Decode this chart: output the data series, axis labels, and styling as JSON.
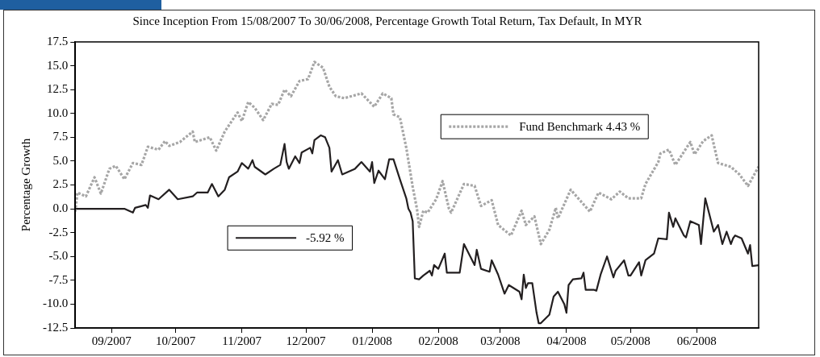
{
  "chart_data": {
    "type": "line",
    "title": "Since Inception From 15/08/2007 To 30/06/2008, Percentage Growth Total Return, Tax Default, In MYR",
    "ylabel": "Percentage Growth",
    "xlim": [
      "2007-08-15",
      "2008-06-30"
    ],
    "xticks": [
      {
        "value": "2007-09-01",
        "label": "09/2007"
      },
      {
        "value": "2007-10-01",
        "label": "10/2007"
      },
      {
        "value": "2007-11-01",
        "label": "11/2007"
      },
      {
        "value": "2007-12-01",
        "label": "12/2007"
      },
      {
        "value": "2008-01-01",
        "label": "01/2008"
      },
      {
        "value": "2008-02-01",
        "label": "02/2008"
      },
      {
        "value": "2008-03-01",
        "label": "03/2008"
      },
      {
        "value": "2008-04-01",
        "label": "04/2008"
      },
      {
        "value": "2008-05-01",
        "label": "05/2008"
      },
      {
        "value": "2008-06-01",
        "label": "06/2008"
      }
    ],
    "ylim": [
      -12.5,
      17.5
    ],
    "yticks": [
      {
        "value": -12.5,
        "label": "-12.5"
      },
      {
        "value": -10,
        "label": "-10.0"
      },
      {
        "value": -7.5,
        "label": "-7.5"
      },
      {
        "value": -5,
        "label": "-5.0"
      },
      {
        "value": -2.5,
        "label": "-2.5"
      },
      {
        "value": 0,
        "label": "0.0"
      },
      {
        "value": 2.5,
        "label": "2.5"
      },
      {
        "value": 5,
        "label": "5.0"
      },
      {
        "value": 7.5,
        "label": "7.5"
      },
      {
        "value": 10,
        "label": "10.0"
      },
      {
        "value": 12.5,
        "label": "12.5"
      },
      {
        "value": 15,
        "label": "15.0"
      },
      17.5
    ],
    "grid": false,
    "legend": "center",
    "marker": "none",
    "series": [
      {
        "name": "Fund Benchmark 4.43 %",
        "color": "#a6a6a6",
        "line_style": "dotted",
        "x": [
          "2007-08-15",
          "2007-08-16",
          "2007-08-20",
          "2007-08-24",
          "2007-08-27",
          "2007-08-31",
          "2007-09-03",
          "2007-09-07",
          "2007-09-11",
          "2007-09-15",
          "2007-09-18",
          "2007-09-23",
          "2007-09-26",
          "2007-09-28",
          "2007-10-03",
          "2007-10-09",
          "2007-10-10",
          "2007-10-17",
          "2007-10-20",
          "2007-10-24",
          "2007-10-30",
          "2007-11-01",
          "2007-11-04",
          "2007-11-07",
          "2007-11-11",
          "2007-11-15",
          "2007-11-18",
          "2007-11-21",
          "2007-11-24",
          "2007-11-28",
          "2007-12-02",
          "2007-12-05",
          "2007-12-09",
          "2007-12-12",
          "2007-12-15",
          "2007-12-19",
          "2007-12-27",
          "2008-01-02",
          "2008-01-06",
          "2008-01-10",
          "2008-01-11",
          "2008-01-14",
          "2008-01-17",
          "2008-01-20",
          "2008-01-22",
          "2008-01-23",
          "2008-01-25",
          "2008-01-27",
          "2008-01-31",
          "2008-02-03",
          "2008-02-06",
          "2008-02-07",
          "2008-02-13",
          "2008-02-18",
          "2008-02-21",
          "2008-02-26",
          "2008-02-29",
          "2008-03-06",
          "2008-03-11",
          "2008-03-13",
          "2008-03-17",
          "2008-03-20",
          "2008-03-24",
          "2008-03-27",
          "2008-03-28",
          "2008-04-03",
          "2008-04-12",
          "2008-04-16",
          "2008-04-22",
          "2008-04-26",
          "2008-04-30",
          "2008-05-06",
          "2008-05-08",
          "2008-05-14",
          "2008-05-15",
          "2008-05-19",
          "2008-05-22",
          "2008-05-29",
          "2008-05-31",
          "2008-06-04",
          "2008-06-08",
          "2008-06-11",
          "2008-06-17",
          "2008-06-21",
          "2008-06-25",
          "2008-06-30"
        ],
        "values": [
          -0.3,
          1.7,
          1.3,
          3.3,
          1.6,
          4.2,
          4.5,
          3.1,
          4.8,
          4.6,
          6.5,
          6.2,
          7.1,
          6.6,
          7.0,
          8.1,
          7.0,
          7.5,
          6.1,
          8.1,
          10.1,
          9.2,
          11.2,
          10.6,
          9.3,
          11.0,
          10.9,
          12.5,
          11.8,
          13.4,
          13.6,
          15.4,
          14.8,
          12.8,
          11.8,
          11.6,
          12.1,
          10.7,
          12.1,
          11.6,
          9.9,
          9.6,
          6.4,
          2.3,
          0.0,
          -1.9,
          -0.2,
          -0.4,
          1.0,
          2.9,
          0.0,
          -0.4,
          2.6,
          2.4,
          0.3,
          0.9,
          -1.7,
          -2.8,
          -0.2,
          -1.7,
          -0.8,
          -3.7,
          -2.2,
          0.1,
          -1.0,
          2.0,
          -0.3,
          1.7,
          1.0,
          1.8,
          1.1,
          1.1,
          2.6,
          4.9,
          5.8,
          6.2,
          4.6,
          7.0,
          5.7,
          7.1,
          7.7,
          4.8,
          4.4,
          3.6,
          2.4,
          4.43
        ]
      },
      {
        "name": "-5.92 %",
        "color": "#231f20",
        "line_style": "solid",
        "x": [
          "2007-08-15",
          "2007-09-07",
          "2007-09-11",
          "2007-09-12",
          "2007-09-17",
          "2007-09-18",
          "2007-09-19",
          "2007-09-23",
          "2007-09-28",
          "2007-10-02",
          "2007-10-09",
          "2007-10-11",
          "2007-10-16",
          "2007-10-18",
          "2007-10-21",
          "2007-10-24",
          "2007-10-26",
          "2007-10-30",
          "2007-11-01",
          "2007-11-04",
          "2007-11-06",
          "2007-11-07",
          "2007-11-12",
          "2007-11-16",
          "2007-11-19",
          "2007-11-21",
          "2007-11-22",
          "2007-11-23",
          "2007-11-26",
          "2007-11-28",
          "2007-11-29",
          "2007-12-03",
          "2007-12-04",
          "2007-12-05",
          "2007-12-08",
          "2007-12-10",
          "2007-12-12",
          "2007-12-13",
          "2007-12-16",
          "2007-12-18",
          "2007-12-24",
          "2007-12-27",
          "2007-12-31",
          "2008-01-01",
          "2008-01-02",
          "2008-01-04",
          "2008-01-07",
          "2008-01-09",
          "2008-01-11",
          "2008-01-14",
          "2008-01-17",
          "2008-01-18",
          "2008-01-19",
          "2008-01-20",
          "2008-01-21",
          "2008-01-23",
          "2008-01-25",
          "2008-01-28",
          "2008-01-29",
          "2008-01-30",
          "2008-02-01",
          "2008-02-04",
          "2008-02-05",
          "2008-02-11",
          "2008-02-13",
          "2008-02-18",
          "2008-02-19",
          "2008-02-21",
          "2008-02-25",
          "2008-02-26",
          "2008-02-29",
          "2008-03-03",
          "2008-03-05",
          "2008-03-10",
          "2008-03-11",
          "2008-03-12",
          "2008-03-13",
          "2008-03-14",
          "2008-03-16",
          "2008-03-18",
          "2008-03-19",
          "2008-03-20",
          "2008-03-24",
          "2008-03-26",
          "2008-03-28",
          "2008-03-31",
          "2008-04-01",
          "2008-04-02",
          "2008-04-04",
          "2008-04-08",
          "2008-04-09",
          "2008-04-10",
          "2008-04-14",
          "2008-04-15",
          "2008-04-17",
          "2008-04-20",
          "2008-04-23",
          "2008-04-24",
          "2008-04-28",
          "2008-04-30",
          "2008-05-01",
          "2008-05-05",
          "2008-05-06",
          "2008-05-08",
          "2008-05-12",
          "2008-05-14",
          "2008-05-18",
          "2008-05-19",
          "2008-05-21",
          "2008-05-22",
          "2008-05-26",
          "2008-05-27",
          "2008-05-29",
          "2008-06-02",
          "2008-06-03",
          "2008-06-05",
          "2008-06-09",
          "2008-06-11",
          "2008-06-13",
          "2008-06-15",
          "2008-06-17",
          "2008-06-18",
          "2008-06-19",
          "2008-06-22",
          "2008-06-25",
          "2008-06-26",
          "2008-06-27",
          "2008-06-30"
        ],
        "values": [
          0.0,
          0.0,
          -0.4,
          0.1,
          0.4,
          0.1,
          1.4,
          1.0,
          2.0,
          1.0,
          1.3,
          1.7,
          1.7,
          2.6,
          1.3,
          2.0,
          3.3,
          3.9,
          4.8,
          4.2,
          5.1,
          4.4,
          3.6,
          4.2,
          4.6,
          6.8,
          4.9,
          4.2,
          5.5,
          4.8,
          5.9,
          6.4,
          5.8,
          7.2,
          7.7,
          7.5,
          6.4,
          3.9,
          5.1,
          3.6,
          4.2,
          4.9,
          3.9,
          4.9,
          2.7,
          4.0,
          3.1,
          5.2,
          5.2,
          3.1,
          1.1,
          0.0,
          -0.4,
          -1.3,
          -7.3,
          -7.4,
          -7.0,
          -6.5,
          -7.0,
          -5.9,
          -6.3,
          -4.7,
          -6.7,
          -6.7,
          -3.7,
          -5.9,
          -4.3,
          -6.3,
          -6.6,
          -5.4,
          -6.9,
          -8.9,
          -8.0,
          -8.7,
          -9.5,
          -6.9,
          -8.3,
          -7.8,
          -7.8,
          -10.9,
          -12.0,
          -12.0,
          -11.1,
          -9.2,
          -8.7,
          -10.0,
          -10.9,
          -8.0,
          -7.4,
          -7.3,
          -6.7,
          -8.5,
          -8.5,
          -8.6,
          -6.9,
          -5.0,
          -7.2,
          -6.5,
          -5.4,
          -7.0,
          -7.0,
          -5.6,
          -7.0,
          -5.4,
          -4.7,
          -3.1,
          -3.2,
          -0.4,
          -1.9,
          -1.0,
          -2.8,
          -3.0,
          -1.3,
          -1.7,
          -3.7,
          1.1,
          -2.4,
          -1.7,
          -3.7,
          -2.4,
          -3.7,
          -3.1,
          -2.8,
          -3.1,
          -4.7,
          -3.8,
          -6.0,
          -5.92
        ]
      }
    ]
  }
}
